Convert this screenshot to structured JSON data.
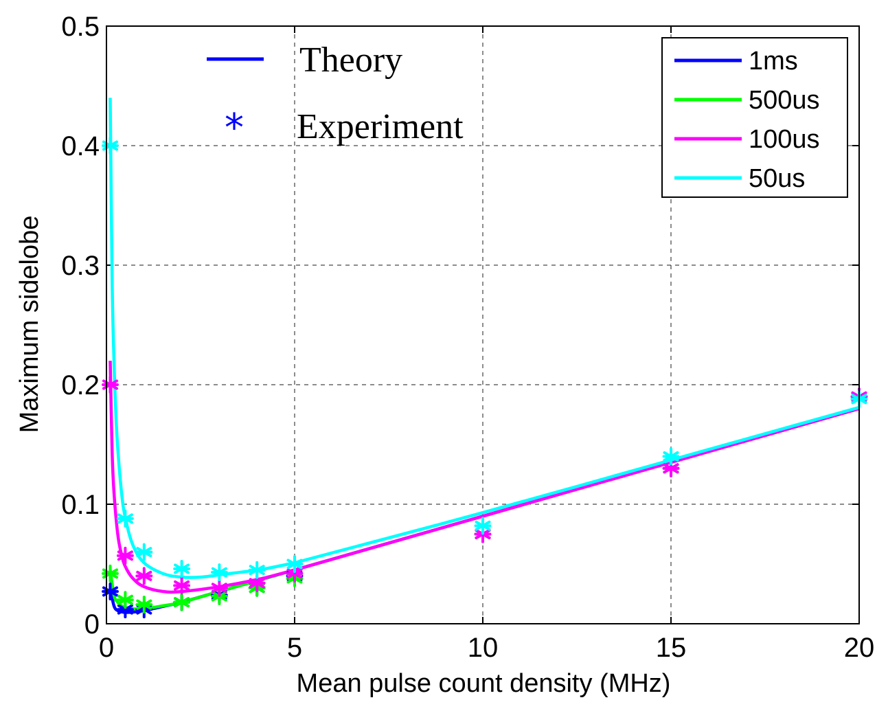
{
  "chart_data": {
    "type": "line",
    "title": "",
    "xlabel": "Mean pulse count density (MHz)",
    "ylabel": "Maximum sidelobe",
    "xlim": [
      0,
      20
    ],
    "ylim": [
      0,
      0.5
    ],
    "x_ticks": [
      0,
      5,
      10,
      15,
      20
    ],
    "y_ticks": [
      0,
      0.1,
      0.2,
      0.3,
      0.4,
      0.5
    ],
    "x_tick_labels": [
      "0",
      "5",
      "10",
      "15",
      "20"
    ],
    "y_tick_labels": [
      "0",
      "0.1",
      "0.2",
      "0.3",
      "0.4",
      "0.5"
    ],
    "grid": true,
    "legend_position": "top-right",
    "annotations": {
      "theory_label": "Theory",
      "experiment_label": "Experiment",
      "theory_color": "#0000ff",
      "experiment_marker": "*",
      "experiment_color": "#0000ff"
    },
    "series": [
      {
        "name": "1ms",
        "color": "#0000ff",
        "theory": {
          "x": [
            0.1,
            0.2,
            0.3,
            0.4,
            0.5,
            0.7,
            1,
            1.5,
            2,
            3,
            4,
            5,
            10,
            15,
            20
          ],
          "y": [
            0.03,
            0.015,
            0.011,
            0.01,
            0.0095,
            0.0098,
            0.011,
            0.0145,
            0.018,
            0.027,
            0.036,
            0.045,
            0.09,
            0.135,
            0.18
          ]
        },
        "experiment": {
          "x": [
            0.1,
            0.5,
            1,
            2,
            3,
            4,
            5,
            10,
            15,
            20
          ],
          "y": [
            0.027,
            0.012,
            0.012,
            0.018,
            0.024,
            0.03,
            0.04,
            0.075,
            0.13,
            0.19
          ]
        }
      },
      {
        "name": "500us",
        "color": "#00ff00",
        "theory": {
          "x": [
            0.1,
            0.2,
            0.3,
            0.4,
            0.5,
            0.7,
            1,
            1.5,
            2,
            3,
            4,
            5,
            10,
            15,
            20
          ],
          "y": [
            0.045,
            0.024,
            0.018,
            0.015,
            0.0135,
            0.0125,
            0.0125,
            0.015,
            0.018,
            0.027,
            0.036,
            0.045,
            0.09,
            0.135,
            0.18
          ]
        },
        "experiment": {
          "x": [
            0.1,
            0.5,
            1,
            2,
            3,
            4,
            5,
            10,
            15,
            20
          ],
          "y": [
            0.042,
            0.02,
            0.016,
            0.018,
            0.023,
            0.03,
            0.038,
            0.075,
            0.13,
            0.19
          ]
        }
      },
      {
        "name": "100us",
        "color": "#ff00ff",
        "theory": {
          "x": [
            0.1,
            0.15,
            0.2,
            0.3,
            0.4,
            0.5,
            0.7,
            1,
            1.5,
            2,
            3,
            4,
            5,
            10,
            15,
            20
          ],
          "y": [
            0.22,
            0.145,
            0.11,
            0.075,
            0.058,
            0.048,
            0.038,
            0.031,
            0.027,
            0.027,
            0.031,
            0.037,
            0.045,
            0.09,
            0.135,
            0.18
          ]
        },
        "experiment": {
          "x": [
            0.1,
            0.5,
            1,
            2,
            3,
            4,
            5,
            10,
            15,
            20
          ],
          "y": [
            0.2,
            0.057,
            0.04,
            0.032,
            0.03,
            0.034,
            0.042,
            0.075,
            0.13,
            0.19
          ]
        }
      },
      {
        "name": "50us",
        "color": "#00ffff",
        "theory": {
          "x": [
            0.1,
            0.15,
            0.2,
            0.25,
            0.3,
            0.4,
            0.5,
            0.7,
            1,
            1.5,
            2,
            2.5,
            3,
            4,
            5,
            10,
            15,
            20
          ],
          "y": [
            0.44,
            0.29,
            0.22,
            0.176,
            0.147,
            0.11,
            0.089,
            0.066,
            0.051,
            0.042,
            0.039,
            0.039,
            0.041,
            0.045,
            0.051,
            0.093,
            0.137,
            0.181
          ]
        },
        "experiment": {
          "x": [
            0.1,
            0.5,
            1,
            2,
            3,
            4,
            5,
            10,
            15,
            20
          ],
          "y": [
            0.4,
            0.088,
            0.06,
            0.046,
            0.043,
            0.045,
            0.05,
            0.082,
            0.14,
            0.188
          ]
        }
      }
    ]
  }
}
